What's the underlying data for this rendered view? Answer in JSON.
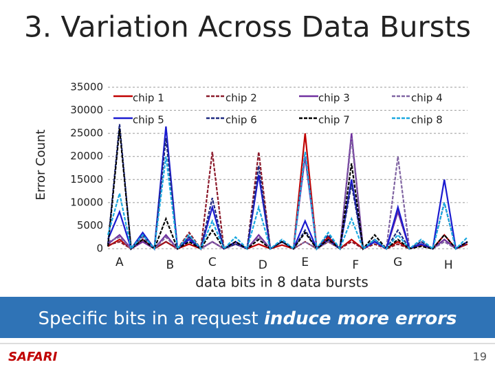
{
  "title": "3. Variation Across Data Bursts",
  "chart_data": {
    "type": "line",
    "ylabel": "Error Count",
    "xlabel": "data bits in 8 data bursts",
    "categories": [
      null,
      "A",
      null,
      null,
      null,
      "B",
      null,
      null,
      null,
      "C",
      null,
      null,
      null,
      "D",
      null,
      null,
      null,
      "E",
      null,
      null,
      null,
      "F",
      null,
      null,
      null,
      "G",
      null,
      null,
      null,
      "H",
      null,
      null
    ],
    "ylim": [
      0,
      35000
    ],
    "yticks": [
      0,
      5000,
      10000,
      15000,
      20000,
      25000,
      30000,
      35000
    ],
    "grid": true,
    "series": [
      {
        "name": "chip 1",
        "color": "#c00000",
        "dash": false,
        "values": [
          500,
          2000,
          0,
          1500,
          0,
          1500,
          0,
          1000,
          0,
          1500,
          0,
          1000,
          0,
          1000,
          0,
          800,
          0,
          25000,
          0,
          2500,
          0,
          2000,
          0,
          1500,
          0,
          1500,
          0,
          800,
          0,
          3000,
          0,
          1000
        ]
      },
      {
        "name": "chip 2",
        "color": "#8b1a2b",
        "dash": true,
        "values": [
          800,
          1500,
          0,
          2000,
          0,
          1500,
          0,
          3500,
          0,
          21000,
          0,
          1500,
          0,
          21000,
          0,
          1500,
          0,
          1500,
          0,
          1500,
          0,
          1500,
          0,
          1000,
          0,
          1000,
          0,
          1000,
          0,
          2000,
          0,
          1000
        ]
      },
      {
        "name": "chip 3",
        "color": "#7030a0",
        "dash": false,
        "values": [
          1000,
          3000,
          0,
          1500,
          0,
          3000,
          0,
          2500,
          0,
          1500,
          0,
          1000,
          0,
          3000,
          0,
          1500,
          0,
          20000,
          0,
          2000,
          0,
          25000,
          0,
          1500,
          0,
          8000,
          0,
          1000,
          0,
          2000,
          0,
          1500
        ]
      },
      {
        "name": "chip 4",
        "color": "#8064a2",
        "dash": true,
        "values": [
          1500,
          2500,
          0,
          2500,
          0,
          2500,
          0,
          2000,
          0,
          1500,
          0,
          1000,
          0,
          2500,
          0,
          1500,
          0,
          1500,
          0,
          1500,
          0,
          24000,
          0,
          2000,
          0,
          20000,
          0,
          1500,
          0,
          1500,
          0,
          1500
        ]
      },
      {
        "name": "chip 5",
        "color": "#1a1ad0",
        "dash": false,
        "values": [
          2000,
          8000,
          0,
          3500,
          0,
          26500,
          0,
          2000,
          0,
          9000,
          0,
          1500,
          0,
          16000,
          0,
          1500,
          0,
          6000,
          0,
          2000,
          0,
          15000,
          0,
          1500,
          0,
          9000,
          0,
          1000,
          0,
          15000,
          0,
          1500
        ]
      },
      {
        "name": "chip 6",
        "color": "#1f2a80",
        "dash": true,
        "values": [
          1000,
          27000,
          0,
          3000,
          0,
          24000,
          0,
          2500,
          0,
          11000,
          0,
          1000,
          0,
          18000,
          0,
          1500,
          0,
          4000,
          0,
          3000,
          0,
          14000,
          0,
          2000,
          0,
          4000,
          0,
          1500,
          0,
          10000,
          0,
          1500
        ]
      },
      {
        "name": "chip 7",
        "color": "#000000",
        "dash": true,
        "values": [
          500,
          26000,
          0,
          2000,
          0,
          6500,
          0,
          1500,
          0,
          4000,
          0,
          1500,
          0,
          2000,
          0,
          1500,
          0,
          3500,
          0,
          2000,
          0,
          18500,
          0,
          3000,
          0,
          2000,
          0,
          500,
          0,
          3000,
          0,
          1500
        ]
      },
      {
        "name": "chip 8",
        "color": "#1aa8e0",
        "dash": true,
        "values": [
          3000,
          12000,
          0,
          3000,
          0,
          20000,
          0,
          3000,
          0,
          6000,
          0,
          2500,
          0,
          9000,
          0,
          2000,
          0,
          21000,
          0,
          3500,
          0,
          6500,
          0,
          2000,
          0,
          3000,
          0,
          2000,
          0,
          10000,
          0,
          2500
        ]
      }
    ]
  },
  "banner": {
    "text": "Specific bits in a request ",
    "emphasis": "induce more errors"
  },
  "footer": {
    "logo": "SAFARI",
    "page": "19"
  }
}
